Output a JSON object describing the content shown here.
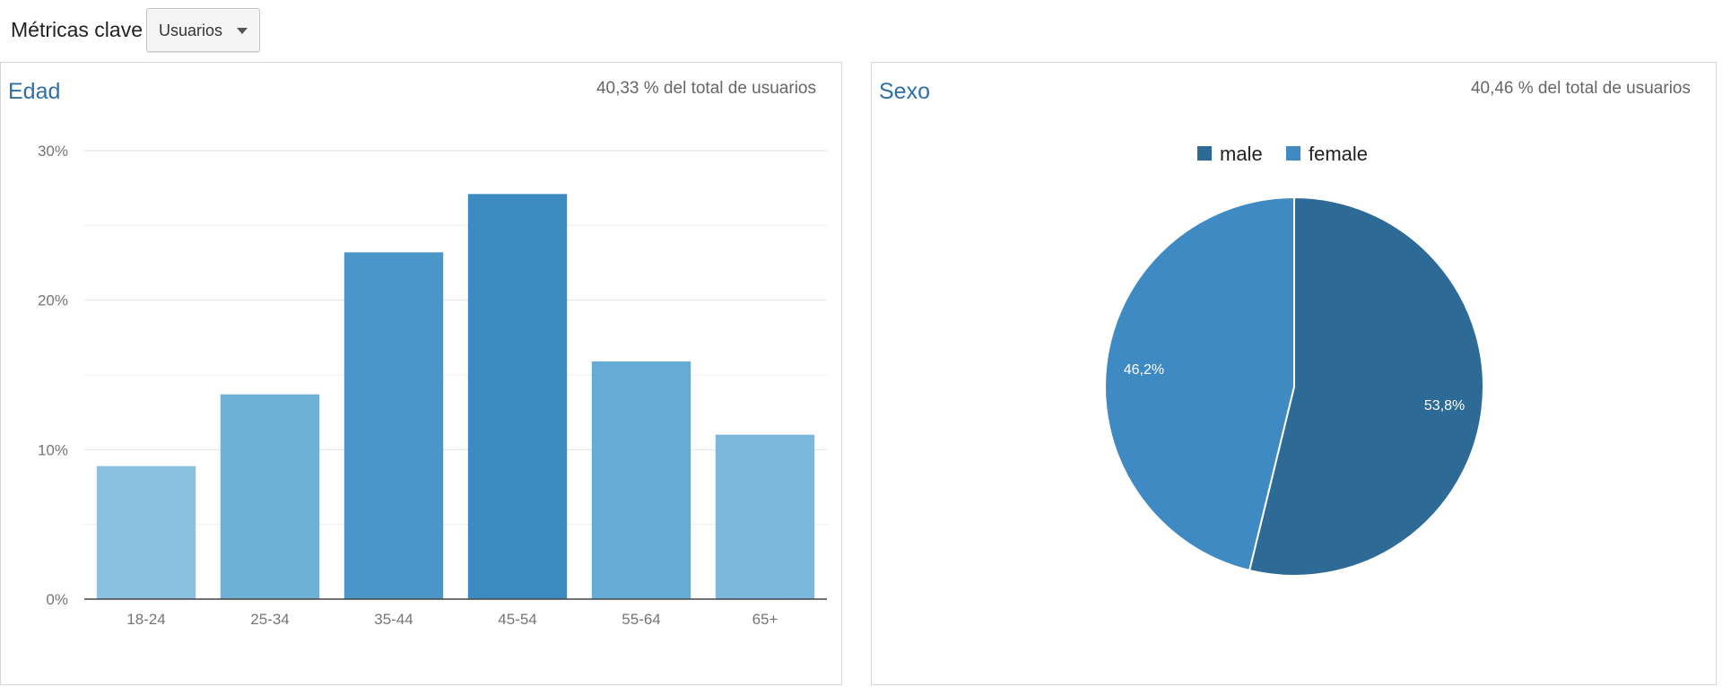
{
  "toolbar": {
    "metrics_label": "Métricas clave",
    "metric_select": {
      "selected": "Usuarios"
    }
  },
  "panels": {
    "age": {
      "title": "Edad",
      "subtitle": "40,33 % del total de usuarios"
    },
    "sex": {
      "title": "Sexo",
      "subtitle": "40,46 % del total de usuarios"
    }
  },
  "chart_data": [
    {
      "type": "bar",
      "title": "Edad",
      "categories": [
        "18-24",
        "25-34",
        "35-44",
        "45-54",
        "55-64",
        "65+"
      ],
      "values": [
        8.9,
        13.7,
        23.2,
        27.1,
        15.9,
        11.0
      ],
      "unit": "%",
      "ylim": [
        0,
        30
      ],
      "y_ticks": [
        "0%",
        "10%",
        "20%",
        "30%"
      ],
      "grid": true,
      "bar_colors": [
        "#8bc1df",
        "#6fb0d7",
        "#4b96c8",
        "#3d8ac1",
        "#64abd5",
        "#7ab9db"
      ]
    },
    {
      "type": "pie",
      "title": "Sexo",
      "labels": [
        "male",
        "female"
      ],
      "values": [
        53.8,
        46.2
      ],
      "slice_labels": [
        "53,8%",
        "46,2%"
      ],
      "colors": [
        "#2e6a96",
        "#3f8ac2"
      ],
      "legend": "top-center"
    }
  ]
}
